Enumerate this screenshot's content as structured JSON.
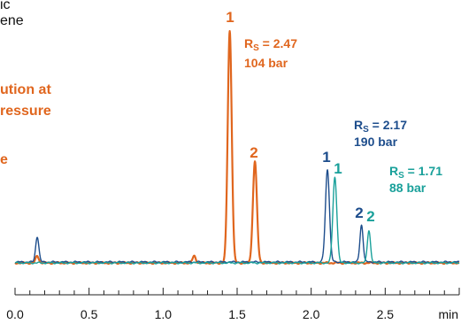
{
  "colors": {
    "orange": "#e0661e",
    "navy": "#1d4d8c",
    "teal": "#19a09a",
    "axis": "#222222"
  },
  "left_text": {
    "line1": "ic",
    "line2": "ene",
    "line3": "ution at",
    "line4": "ressure",
    "line5": "e"
  },
  "chart_data": {
    "type": "line",
    "xlabel": "min",
    "xlim": [
      0.0,
      3.0
    ],
    "x_ticks": [
      "0.0",
      "0.5",
      "1.0",
      "1.5",
      "2.0",
      "2.5"
    ],
    "series": [
      {
        "color_key": "orange",
        "peaks": [
          {
            "rt": 0.15,
            "height": 0.03
          },
          {
            "rt": 1.21,
            "height": 0.03
          },
          {
            "rt": 1.45,
            "height": 1.0
          },
          {
            "rt": 1.62,
            "height": 0.44
          }
        ]
      },
      {
        "color_key": "navy",
        "peaks": [
          {
            "rt": 0.15,
            "height": 0.11
          },
          {
            "rt": 2.11,
            "height": 0.4
          },
          {
            "rt": 2.34,
            "height": 0.16
          }
        ]
      },
      {
        "color_key": "teal",
        "peaks": [
          {
            "rt": 2.16,
            "height": 0.37
          },
          {
            "rt": 2.39,
            "height": 0.14
          }
        ]
      }
    ],
    "annotations": [
      {
        "color_key": "orange",
        "peak1": "1",
        "peak2": "2",
        "rs_label": "R",
        "rs_sub": "S",
        "rs_value": "= 2.47",
        "pressure": "104 bar"
      },
      {
        "color_key": "navy",
        "peak1": "1",
        "peak2": "2",
        "rs_label": "R",
        "rs_sub": "S",
        "rs_value": "= 2.17",
        "pressure": "190 bar"
      },
      {
        "color_key": "teal",
        "peak1": "1",
        "peak2": "2",
        "rs_label": "R",
        "rs_sub": "S",
        "rs_value": "= 1.71",
        "pressure": "88 bar"
      }
    ]
  }
}
